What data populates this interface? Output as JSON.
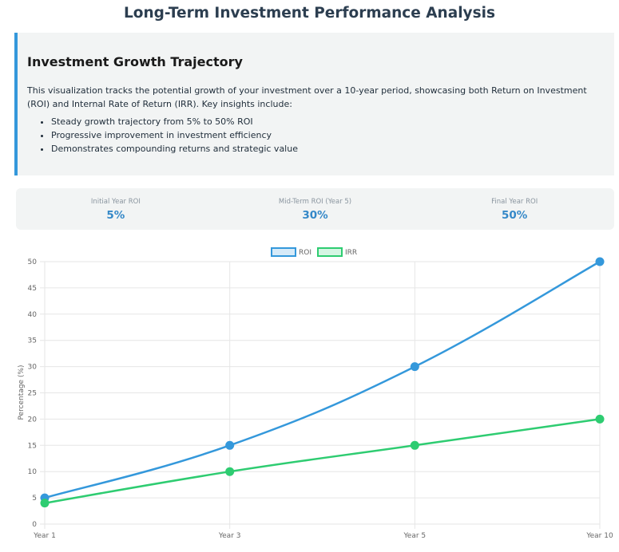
{
  "page": {
    "title": "Long-Term Investment Performance Analysis"
  },
  "info": {
    "title": "Investment Growth Trajectory",
    "description": "This visualization tracks the potential growth of your investment over a 10-year period, showcasing both Return on Investment (ROI) and Internal Rate of Return (IRR). Key insights include:",
    "bullets": [
      "Steady growth trajectory from 5% to 50% ROI",
      "Progressive improvement in investment efficiency",
      "Demonstrates compounding returns and strategic value"
    ]
  },
  "stats": [
    {
      "label": "Initial Year ROI",
      "value": "5%"
    },
    {
      "label": "Mid-Term ROI (Year 5)",
      "value": "30%"
    },
    {
      "label": "Final Year ROI",
      "value": "50%"
    }
  ],
  "chart_data": {
    "type": "line",
    "categories": [
      "Year 1",
      "Year 3",
      "Year 5",
      "Year 10"
    ],
    "series": [
      {
        "name": "ROI",
        "values": [
          5,
          15,
          30,
          50
        ],
        "color": "#3498db"
      },
      {
        "name": "IRR",
        "values": [
          4,
          10,
          15,
          20
        ],
        "color": "#2ecc71"
      }
    ],
    "ylabel": "Percentage (%)",
    "ylim": [
      0,
      50
    ],
    "yticks": [
      "0",
      "5",
      "10",
      "15",
      "20",
      "25",
      "30",
      "35",
      "40",
      "45",
      "50"
    ],
    "grid": true,
    "legend_position": "top-center"
  }
}
